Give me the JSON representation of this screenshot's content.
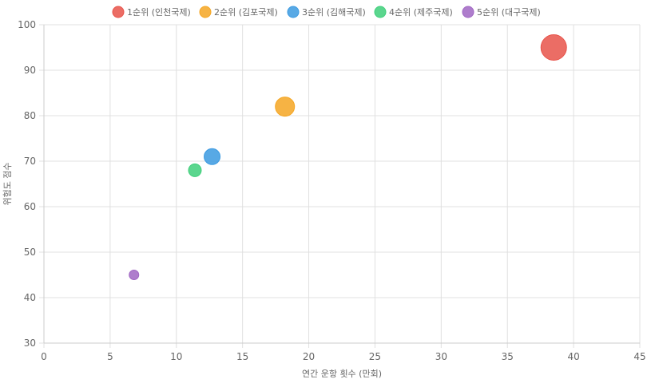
{
  "chart_data": {
    "type": "bubble",
    "title": "",
    "xlabel": "연간 운항 횟수 (만회)",
    "ylabel": "위험도 점수",
    "xlim": [
      0,
      45
    ],
    "ylim": [
      30,
      100
    ],
    "x_ticks": [
      0,
      5,
      10,
      15,
      20,
      25,
      30,
      35,
      40,
      45
    ],
    "y_ticks": [
      30,
      40,
      50,
      60,
      70,
      80,
      90,
      100
    ],
    "grid": true,
    "legend_position": "top",
    "series": [
      {
        "name": "1순위 (인천국제)",
        "color": "#e8534a",
        "points": [
          {
            "x": 38.5,
            "y": 95,
            "r": 16
          }
        ]
      },
      {
        "name": "2순위 (김포국제)",
        "color": "#f5a623",
        "points": [
          {
            "x": 18.2,
            "y": 82,
            "r": 12
          }
        ]
      },
      {
        "name": "3순위 (김해국제)",
        "color": "#3b9ae1",
        "points": [
          {
            "x": 12.7,
            "y": 71,
            "r": 10
          }
        ]
      },
      {
        "name": "4순위 (제주국제)",
        "color": "#3ecf7a",
        "points": [
          {
            "x": 11.4,
            "y": 68,
            "r": 8
          }
        ]
      },
      {
        "name": "5순위 (대구국제)",
        "color": "#a066c3",
        "points": [
          {
            "x": 6.8,
            "y": 45,
            "r": 6
          }
        ]
      }
    ]
  }
}
